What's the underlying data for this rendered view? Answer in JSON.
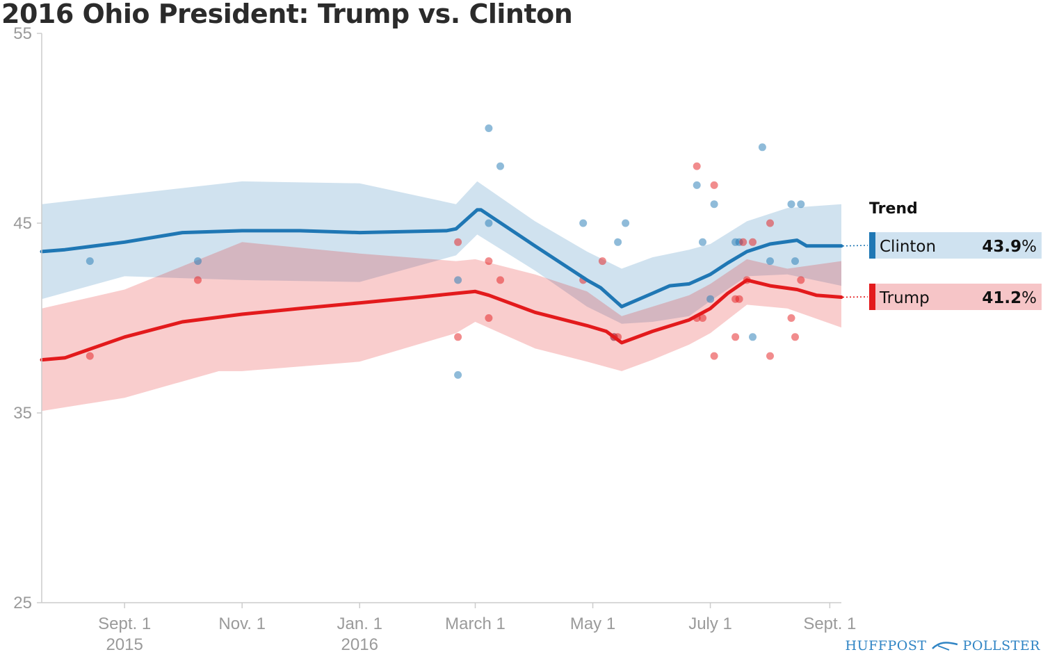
{
  "title": "2016 Ohio President: Trump vs. Clinton",
  "brand": {
    "left": "HUFFPOST",
    "right": "POLLSTER"
  },
  "legend": {
    "title": "Trend",
    "items": [
      {
        "name": "Clinton",
        "value": "43.9",
        "unit": "%"
      },
      {
        "name": "Trump",
        "value": "41.2",
        "unit": "%"
      }
    ]
  },
  "colors": {
    "clinton": "#1f77b4",
    "trump": "#e31a1c",
    "clinton_band": "#cfe2f0",
    "trump_band": "#f6c5c7",
    "axis": "#cccccc"
  },
  "chart_data": {
    "type": "line",
    "title": "2016 Ohio President: Trump vs. Clinton",
    "xlabel": "",
    "ylabel": "",
    "ylim": [
      25,
      55
    ],
    "yticks": [
      "55",
      "45",
      "35",
      "25"
    ],
    "xlim": [
      "2015-07-20",
      "2016-09-07"
    ],
    "xticks": [
      {
        "date": "2015-09-01",
        "label": "Sept. 1",
        "sub": "2015"
      },
      {
        "date": "2015-11-01",
        "label": "Nov. 1",
        "sub": ""
      },
      {
        "date": "2016-01-01",
        "label": "Jan. 1",
        "sub": "2016"
      },
      {
        "date": "2016-03-01",
        "label": "March 1",
        "sub": ""
      },
      {
        "date": "2016-05-01",
        "label": "May 1",
        "sub": ""
      },
      {
        "date": "2016-07-01",
        "label": "July 1",
        "sub": ""
      },
      {
        "date": "2016-09-01",
        "label": "Sept. 1",
        "sub": ""
      }
    ],
    "series": [
      {
        "name": "Clinton",
        "trend": [
          [
            "2015-07-20",
            43.5
          ],
          [
            "2015-08-01",
            43.6
          ],
          [
            "2015-09-01",
            44.0
          ],
          [
            "2015-10-01",
            44.5
          ],
          [
            "2015-11-01",
            44.6
          ],
          [
            "2015-12-01",
            44.6
          ],
          [
            "2016-01-01",
            44.5
          ],
          [
            "2016-02-15",
            44.6
          ],
          [
            "2016-02-20",
            44.7
          ],
          [
            "2016-03-02",
            45.7
          ],
          [
            "2016-03-04",
            45.7
          ],
          [
            "2016-04-01",
            43.8
          ],
          [
            "2016-04-28",
            42.0
          ],
          [
            "2016-05-05",
            41.6
          ],
          [
            "2016-05-16",
            40.6
          ],
          [
            "2016-06-01",
            41.3
          ],
          [
            "2016-06-10",
            41.7
          ],
          [
            "2016-06-20",
            41.8
          ],
          [
            "2016-07-01",
            42.3
          ],
          [
            "2016-07-10",
            42.9
          ],
          [
            "2016-07-20",
            43.5
          ],
          [
            "2016-08-01",
            43.9
          ],
          [
            "2016-08-15",
            44.1
          ],
          [
            "2016-08-20",
            43.8
          ],
          [
            "2016-09-07",
            43.8
          ]
        ],
        "band_upper": [
          [
            "2015-07-20",
            46.0
          ],
          [
            "2015-09-01",
            46.5
          ],
          [
            "2015-11-01",
            47.2
          ],
          [
            "2016-01-01",
            47.1
          ],
          [
            "2016-02-20",
            46.0
          ],
          [
            "2016-03-02",
            47.2
          ],
          [
            "2016-04-01",
            45.1
          ],
          [
            "2016-04-28",
            43.5
          ],
          [
            "2016-05-16",
            42.6
          ],
          [
            "2016-06-01",
            43.2
          ],
          [
            "2016-06-20",
            43.6
          ],
          [
            "2016-07-01",
            43.9
          ],
          [
            "2016-07-20",
            45.1
          ],
          [
            "2016-08-10",
            45.8
          ],
          [
            "2016-09-07",
            46.0
          ]
        ],
        "band_lower": [
          [
            "2015-07-20",
            41.0
          ],
          [
            "2015-09-01",
            42.2
          ],
          [
            "2015-11-01",
            42.0
          ],
          [
            "2016-01-01",
            41.9
          ],
          [
            "2016-02-20",
            43.3
          ],
          [
            "2016-03-02",
            44.4
          ],
          [
            "2016-04-01",
            42.5
          ],
          [
            "2016-04-28",
            40.6
          ],
          [
            "2016-05-16",
            39.7
          ],
          [
            "2016-06-01",
            39.8
          ],
          [
            "2016-06-20",
            40.1
          ],
          [
            "2016-07-01",
            40.9
          ],
          [
            "2016-07-20",
            42.2
          ],
          [
            "2016-08-10",
            42.3
          ],
          [
            "2016-09-07",
            41.7
          ]
        ],
        "polls": [
          [
            "2015-08-14",
            43
          ],
          [
            "2015-10-09",
            43
          ],
          [
            "2016-02-21",
            42
          ],
          [
            "2016-02-21",
            37
          ],
          [
            "2016-03-08",
            50
          ],
          [
            "2016-03-14",
            48
          ],
          [
            "2016-03-08",
            45
          ],
          [
            "2016-04-26",
            45
          ],
          [
            "2016-05-14",
            44
          ],
          [
            "2016-05-18",
            45
          ],
          [
            "2016-05-12",
            39
          ],
          [
            "2016-06-24",
            47
          ],
          [
            "2016-06-27",
            44
          ],
          [
            "2016-07-03",
            46
          ],
          [
            "2016-07-01",
            41
          ],
          [
            "2016-07-14",
            44
          ],
          [
            "2016-07-16",
            44
          ],
          [
            "2016-07-23",
            39
          ],
          [
            "2016-07-28",
            49
          ],
          [
            "2016-08-01",
            43
          ],
          [
            "2016-08-12",
            46
          ],
          [
            "2016-08-17",
            46
          ],
          [
            "2016-08-14",
            43
          ]
        ]
      },
      {
        "name": "Trump",
        "trend": [
          [
            "2015-07-20",
            37.8
          ],
          [
            "2015-08-01",
            37.9
          ],
          [
            "2015-09-01",
            39.0
          ],
          [
            "2015-10-01",
            39.8
          ],
          [
            "2015-11-01",
            40.2
          ],
          [
            "2015-12-01",
            40.5
          ],
          [
            "2016-01-01",
            40.8
          ],
          [
            "2016-02-01",
            41.1
          ],
          [
            "2016-02-20",
            41.3
          ],
          [
            "2016-03-01",
            41.4
          ],
          [
            "2016-03-08",
            41.2
          ],
          [
            "2016-04-01",
            40.3
          ],
          [
            "2016-04-28",
            39.6
          ],
          [
            "2016-05-08",
            39.3
          ],
          [
            "2016-05-16",
            38.7
          ],
          [
            "2016-06-01",
            39.3
          ],
          [
            "2016-06-20",
            39.9
          ],
          [
            "2016-07-01",
            40.5
          ],
          [
            "2016-07-10",
            41.3
          ],
          [
            "2016-07-20",
            42.0
          ],
          [
            "2016-08-01",
            41.7
          ],
          [
            "2016-08-15",
            41.5
          ],
          [
            "2016-08-25",
            41.2
          ],
          [
            "2016-09-07",
            41.1
          ]
        ],
        "band_upper": [
          [
            "2015-07-20",
            40.5
          ],
          [
            "2015-09-01",
            41.5
          ],
          [
            "2015-11-01",
            44.0
          ],
          [
            "2016-01-01",
            43.4
          ],
          [
            "2016-02-20",
            43.0
          ],
          [
            "2016-03-01",
            43.1
          ],
          [
            "2016-04-01",
            42.3
          ],
          [
            "2016-04-28",
            41.4
          ],
          [
            "2016-05-16",
            40.1
          ],
          [
            "2016-06-01",
            40.6
          ],
          [
            "2016-06-20",
            41.2
          ],
          [
            "2016-07-01",
            41.8
          ],
          [
            "2016-07-20",
            43.1
          ],
          [
            "2016-08-10",
            42.6
          ],
          [
            "2016-09-07",
            43.0
          ]
        ],
        "band_lower": [
          [
            "2015-07-20",
            35.1
          ],
          [
            "2015-09-01",
            35.8
          ],
          [
            "2015-10-20",
            37.2
          ],
          [
            "2015-11-01",
            37.2
          ],
          [
            "2016-01-01",
            37.7
          ],
          [
            "2016-02-20",
            39.2
          ],
          [
            "2016-03-01",
            39.8
          ],
          [
            "2016-04-01",
            38.4
          ],
          [
            "2016-04-28",
            37.7
          ],
          [
            "2016-05-16",
            37.2
          ],
          [
            "2016-06-01",
            37.8
          ],
          [
            "2016-06-20",
            38.6
          ],
          [
            "2016-07-01",
            39.2
          ],
          [
            "2016-07-20",
            40.7
          ],
          [
            "2016-08-10",
            40.5
          ],
          [
            "2016-09-07",
            39.5
          ]
        ],
        "polls": [
          [
            "2015-08-14",
            38
          ],
          [
            "2015-10-09",
            42
          ],
          [
            "2016-02-21",
            44
          ],
          [
            "2016-02-21",
            39
          ],
          [
            "2016-03-08",
            43
          ],
          [
            "2016-03-08",
            40
          ],
          [
            "2016-03-14",
            42
          ],
          [
            "2016-04-26",
            42
          ],
          [
            "2016-05-06",
            43
          ],
          [
            "2016-05-12",
            39
          ],
          [
            "2016-05-14",
            39
          ],
          [
            "2016-06-24",
            48
          ],
          [
            "2016-06-24",
            40
          ],
          [
            "2016-06-27",
            40
          ],
          [
            "2016-07-03",
            47
          ],
          [
            "2016-07-03",
            38
          ],
          [
            "2016-07-14",
            41
          ],
          [
            "2016-07-16",
            41
          ],
          [
            "2016-07-14",
            39
          ],
          [
            "2016-07-20",
            42
          ],
          [
            "2016-07-18",
            44
          ],
          [
            "2016-07-23",
            44
          ],
          [
            "2016-08-01",
            45
          ],
          [
            "2016-08-01",
            38
          ],
          [
            "2016-08-12",
            40
          ],
          [
            "2016-08-14",
            39
          ],
          [
            "2016-08-17",
            42
          ]
        ]
      }
    ]
  }
}
